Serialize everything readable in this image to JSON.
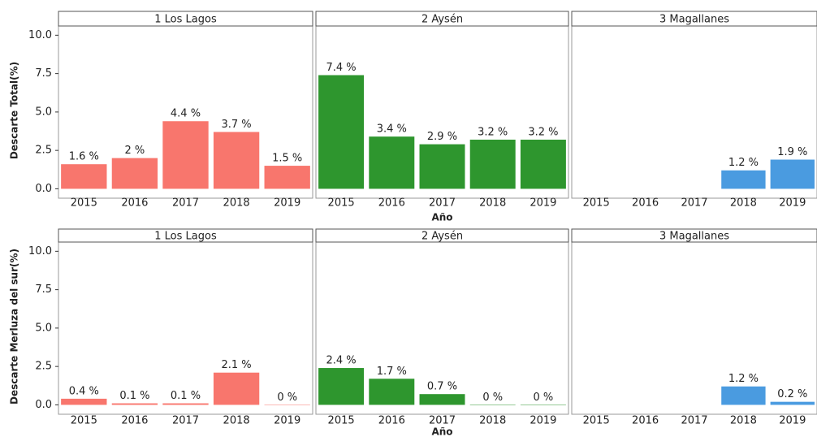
{
  "chart_data": [
    {
      "type": "bar",
      "title": "1 Los Lagos",
      "y_label": "Descarte Total(%)",
      "categories": [
        "2015",
        "2016",
        "2017",
        "2018",
        "2019"
      ],
      "values": [
        1.6,
        2,
        4.4,
        3.7,
        1.5
      ],
      "value_labels": [
        "1.6 %",
        "2 %",
        "4.4 %",
        "3.7 %",
        "1.5 %"
      ],
      "color": "#f8766d",
      "ylim": [
        -0.4,
        10.6
      ],
      "yticks": [
        {
          "value": 0,
          "label": "0.0"
        },
        {
          "value": 2.5,
          "label": "2.5"
        },
        {
          "value": 5,
          "label": "5.0"
        },
        {
          "value": 7.5,
          "label": "7.5"
        },
        {
          "value": 10,
          "label": "10.0"
        }
      ]
    },
    {
      "type": "bar",
      "title": "2 Aysén",
      "x_label": "Año",
      "categories": [
        "2015",
        "2016",
        "2017",
        "2018",
        "2019"
      ],
      "values": [
        7.4,
        3.4,
        2.9,
        3.2,
        3.2
      ],
      "value_labels": [
        "7.4 %",
        "3.4 %",
        "2.9 %",
        "3.2 %",
        "3.2 %"
      ],
      "color": "#2e962e",
      "ylim": [
        -0.4,
        10.6
      ]
    },
    {
      "type": "bar",
      "title": "3 Magallanes",
      "categories": [
        "2015",
        "2016",
        "2017",
        "2018",
        "2019"
      ],
      "values": [
        null,
        null,
        null,
        1.2,
        1.9
      ],
      "value_labels": [
        null,
        null,
        null,
        "1.2 %",
        "1.9 %"
      ],
      "color": "#4a9be0",
      "ylim": [
        -0.4,
        10.6
      ]
    },
    {
      "type": "bar",
      "title": "1 Los Lagos",
      "y_label": "Descarte Merluza del sur(%)",
      "categories": [
        "2015",
        "2016",
        "2017",
        "2018",
        "2019"
      ],
      "values": [
        0.4,
        0.1,
        0.1,
        2.1,
        0
      ],
      "value_labels": [
        "0.4 %",
        "0.1 %",
        "0.1 %",
        "2.1 %",
        "0 %"
      ],
      "color": "#f8766d",
      "ylim": [
        -0.4,
        10.6
      ],
      "yticks": [
        {
          "value": 0,
          "label": "0.0"
        },
        {
          "value": 2.5,
          "label": "2.5"
        },
        {
          "value": 5,
          "label": "5.0"
        },
        {
          "value": 7.5,
          "label": "7.5"
        },
        {
          "value": 10,
          "label": "10.0"
        }
      ]
    },
    {
      "type": "bar",
      "title": "2 Aysén",
      "x_label": "Año",
      "categories": [
        "2015",
        "2016",
        "2017",
        "2018",
        "2019"
      ],
      "values": [
        2.4,
        1.7,
        0.7,
        0,
        0
      ],
      "value_labels": [
        "2.4 %",
        "1.7 %",
        "0.7 %",
        "0 %",
        "0 %"
      ],
      "color": "#2e962e",
      "ylim": [
        -0.4,
        10.6
      ]
    },
    {
      "type": "bar",
      "title": "3 Magallanes",
      "categories": [
        "2015",
        "2016",
        "2017",
        "2018",
        "2019"
      ],
      "values": [
        null,
        null,
        null,
        1.2,
        0.2
      ],
      "value_labels": [
        null,
        null,
        null,
        "1.2 %",
        "0.2 %"
      ],
      "color": "#4a9be0",
      "ylim": [
        -0.4,
        10.6
      ]
    }
  ]
}
